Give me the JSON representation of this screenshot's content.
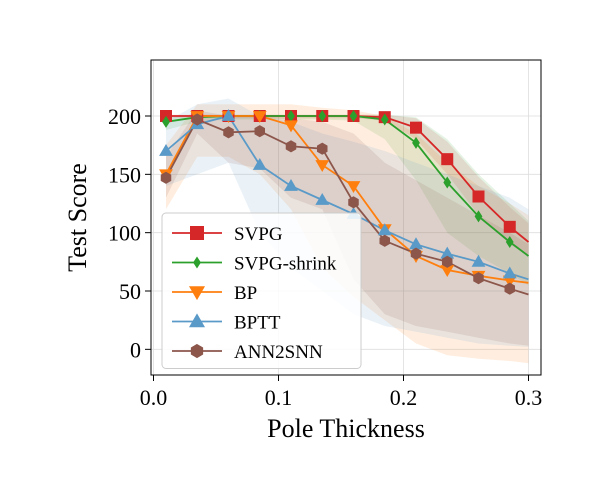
{
  "chart_data": {
    "type": "line",
    "title": "",
    "xlabel": "Pole Thickness",
    "ylabel": "Test Score",
    "xlim": [
      -0.002,
      0.31
    ],
    "ylim": [
      -22,
      248
    ],
    "xticks": [
      0.0,
      0.1,
      0.2,
      0.3
    ],
    "xtick_labels": [
      "0.0",
      "0.1",
      "0.2",
      "0.3"
    ],
    "yticks": [
      0,
      50,
      100,
      150,
      200
    ],
    "ytick_labels": [
      "0",
      "50",
      "100",
      "150",
      "200"
    ],
    "grid": true,
    "legend_position": "lower-left",
    "x": [
      0.01,
      0.035,
      0.06,
      0.085,
      0.11,
      0.135,
      0.16,
      0.185,
      0.21,
      0.235,
      0.26,
      0.285,
      0.3
    ],
    "series": [
      {
        "name": "SVPG",
        "color": "#d62728",
        "marker": "square",
        "values": [
          200,
          200,
          200,
          200,
          200,
          200,
          200,
          199,
          190,
          163,
          131,
          105,
          92
        ],
        "lower": [
          198,
          198,
          198,
          198,
          198,
          198,
          198,
          196,
          180,
          150,
          115,
          90,
          80
        ],
        "upper": [
          201,
          201,
          201,
          201,
          201,
          201,
          201,
          201,
          198,
          178,
          148,
          122,
          108
        ]
      },
      {
        "name": "SVPG-shrink",
        "color": "#2ca02c",
        "marker": "diamond",
        "values": [
          195,
          199,
          200,
          200,
          200,
          200,
          200,
          197,
          177,
          143,
          114,
          92,
          80
        ],
        "lower": [
          188,
          195,
          197,
          197,
          197,
          197,
          196,
          180,
          145,
          100,
          80,
          65,
          55
        ],
        "upper": [
          200,
          201,
          201,
          201,
          201,
          201,
          201,
          201,
          199,
          180,
          150,
          125,
          110
        ]
      },
      {
        "name": "BP",
        "color": "#ff7f0e",
        "marker": "triangle-down",
        "values": [
          150,
          200,
          200,
          200,
          192,
          158,
          140,
          103,
          80,
          68,
          63,
          59,
          57
        ],
        "lower": [
          120,
          165,
          165,
          150,
          120,
          70,
          45,
          25,
          5,
          -5,
          -8,
          -10,
          -12
        ],
        "upper": [
          175,
          210,
          210,
          210,
          210,
          207,
          205,
          200,
          185,
          160,
          140,
          125,
          115
        ]
      },
      {
        "name": "BPTT",
        "color": "#5a9ac8",
        "marker": "triangle-up",
        "values": [
          170,
          193,
          200,
          158,
          140,
          128,
          116,
          102,
          90,
          82,
          75,
          65,
          60
        ],
        "lower": [
          140,
          150,
          160,
          100,
          70,
          50,
          30,
          20,
          15,
          10,
          5,
          3,
          2
        ],
        "upper": [
          195,
          210,
          215,
          200,
          195,
          185,
          178,
          170,
          160,
          150,
          140,
          130,
          120
        ]
      },
      {
        "name": "ANN2SNN",
        "color": "#8c564b",
        "marker": "hexagon",
        "values": [
          147,
          197,
          186,
          187,
          174,
          172,
          126,
          93,
          82,
          75,
          61,
          52,
          47
        ],
        "lower": [
          130,
          185,
          160,
          155,
          130,
          120,
          60,
          30,
          20,
          15,
          10,
          5,
          3
        ],
        "upper": [
          165,
          205,
          200,
          200,
          198,
          195,
          185,
          160,
          145,
          130,
          115,
          100,
          90
        ]
      }
    ]
  }
}
